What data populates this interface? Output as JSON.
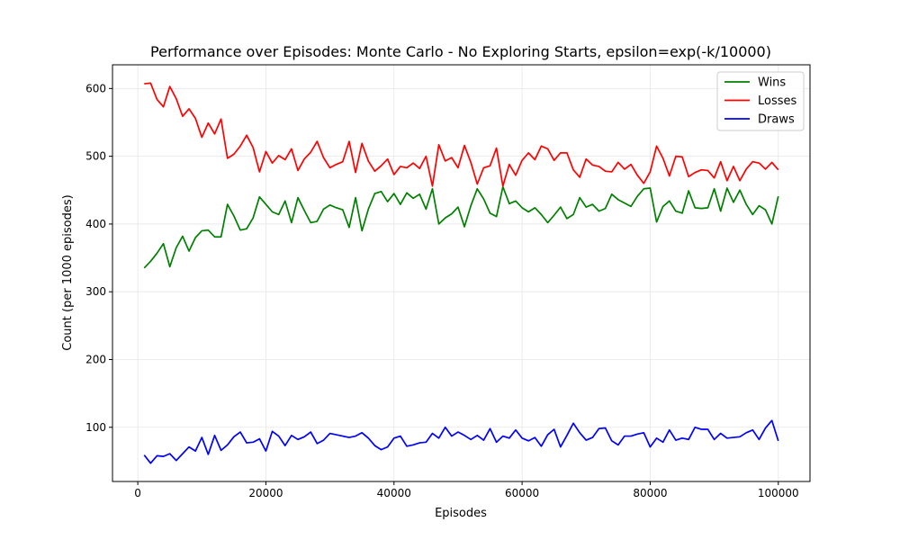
{
  "chart_data": {
    "type": "line",
    "title": "Performance over Episodes: Monte Carlo - No Exploring Starts, epsilon=exp(-k/10000)",
    "xlabel": "Episodes",
    "ylabel": "Count (per 1000 episodes)",
    "xlim": [
      -3950,
      104950
    ],
    "ylim": [
      20,
      635
    ],
    "xticks": [
      0,
      20000,
      40000,
      60000,
      80000,
      100000
    ],
    "yticks": [
      100,
      200,
      300,
      400,
      500,
      600
    ],
    "grid": true,
    "legend_position": "top-right",
    "x": [
      1000,
      2000,
      3000,
      4000,
      5000,
      6000,
      7000,
      8000,
      9000,
      10000,
      11000,
      12000,
      13000,
      14000,
      15000,
      16000,
      17000,
      18000,
      19000,
      20000,
      21000,
      22000,
      23000,
      24000,
      25000,
      26000,
      27000,
      28000,
      29000,
      30000,
      31000,
      32000,
      33000,
      34000,
      35000,
      36000,
      37000,
      38000,
      39000,
      40000,
      41000,
      42000,
      43000,
      44000,
      45000,
      46000,
      47000,
      48000,
      49000,
      50000,
      51000,
      52000,
      53000,
      54000,
      55000,
      56000,
      57000,
      58000,
      59000,
      60000,
      61000,
      62000,
      63000,
      64000,
      65000,
      66000,
      67000,
      68000,
      69000,
      70000,
      71000,
      72000,
      73000,
      74000,
      75000,
      76000,
      77000,
      78000,
      79000,
      80000,
      81000,
      82000,
      83000,
      84000,
      85000,
      86000,
      87000,
      88000,
      89000,
      90000,
      91000,
      92000,
      93000,
      94000,
      95000,
      96000,
      97000,
      98000,
      99000,
      100000
    ],
    "series": [
      {
        "name": "Wins",
        "color": "#008000",
        "values": [
          335,
          345,
          357,
          371,
          337,
          365,
          382,
          360,
          380,
          390,
          391,
          381,
          381,
          429,
          412,
          391,
          393,
          409,
          440,
          429,
          418,
          414,
          434,
          402,
          439,
          420,
          402,
          404,
          422,
          428,
          424,
          421,
          395,
          439,
          390,
          422,
          445,
          448,
          433,
          445,
          429,
          446,
          438,
          444,
          422,
          452,
          400,
          409,
          415,
          425,
          396,
          427,
          452,
          437,
          416,
          411,
          455,
          430,
          434,
          424,
          418,
          424,
          414,
          402,
          413,
          425,
          408,
          414,
          439,
          425,
          429,
          419,
          423,
          444,
          436,
          431,
          426,
          441,
          452,
          453,
          403,
          426,
          434,
          419,
          416,
          449,
          424,
          423,
          424,
          452,
          419,
          453,
          432,
          450,
          429,
          414,
          427,
          421,
          400,
          441
        ]
      },
      {
        "name": "Losses",
        "color": "#ff0000",
        "values": [
          607,
          608,
          584,
          573,
          603,
          585,
          559,
          570,
          556,
          528,
          549,
          533,
          555,
          497,
          503,
          515,
          531,
          513,
          477,
          507,
          490,
          501,
          495,
          511,
          479,
          496,
          506,
          522,
          498,
          483,
          488,
          492,
          522,
          476,
          519,
          493,
          478,
          486,
          496,
          473,
          485,
          483,
          490,
          482,
          500,
          456,
          517,
          493,
          498,
          483,
          516,
          491,
          459,
          483,
          486,
          512,
          456,
          488,
          472,
          494,
          505,
          495,
          515,
          511,
          494,
          505,
          505,
          480,
          469,
          496,
          487,
          485,
          478,
          477,
          491,
          481,
          488,
          472,
          460,
          477,
          515,
          497,
          471,
          500,
          499,
          470,
          476,
          480,
          479,
          468,
          492,
          464,
          485,
          464,
          481,
          492,
          490,
          481,
          491,
          480
        ]
      },
      {
        "name": "Draws",
        "color": "#0000ff",
        "values": [
          59,
          47,
          58,
          57,
          61,
          51,
          61,
          71,
          65,
          85,
          60,
          88,
          66,
          74,
          86,
          93,
          77,
          78,
          83,
          65,
          94,
          87,
          73,
          88,
          82,
          86,
          93,
          76,
          81,
          91,
          89,
          87,
          85,
          87,
          92,
          84,
          73,
          67,
          71,
          84,
          87,
          72,
          74,
          77,
          78,
          91,
          84,
          100,
          87,
          93,
          88,
          82,
          88,
          81,
          98,
          78,
          87,
          84,
          96,
          84,
          80,
          85,
          72,
          89,
          97,
          71,
          88,
          106,
          92,
          81,
          85,
          98,
          99,
          80,
          74,
          87,
          87,
          90,
          92,
          71,
          84,
          78,
          96,
          81,
          84,
          82,
          100,
          97,
          97,
          82,
          91,
          84,
          85,
          86,
          92,
          96,
          82,
          99,
          110,
          80
        ]
      }
    ]
  }
}
